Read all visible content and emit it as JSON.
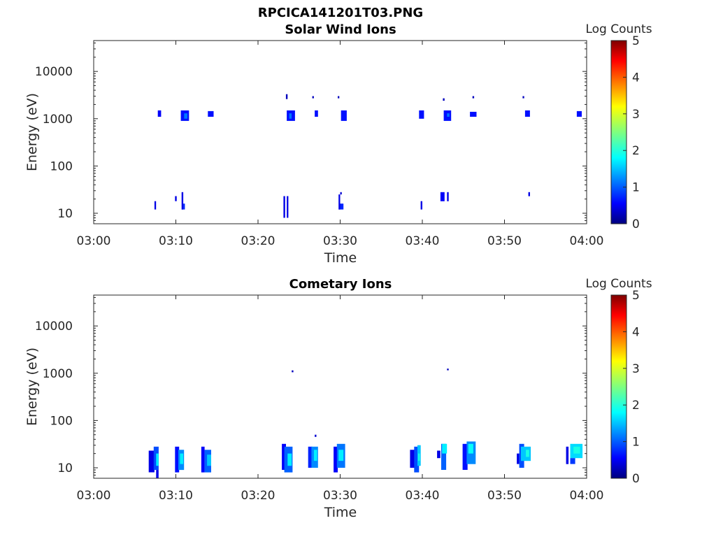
{
  "figure_title": "RPCICA141201T03.PNG",
  "colorbar_colors": [
    "#00007f",
    "#0000ff",
    "#007fff",
    "#00ffff",
    "#7fff7f",
    "#ffff00",
    "#ff7f00",
    "#ff0000",
    "#7f0000"
  ],
  "chart_data": [
    {
      "type": "heatmap",
      "title": "Solar Wind Ions",
      "xlabel": "Time",
      "ylabel": "Energy (eV)",
      "x_ticks": [
        "03:00",
        "03:10",
        "03:20",
        "03:30",
        "03:40",
        "03:50",
        "04:00"
      ],
      "xlim_minutes": [
        0,
        60
      ],
      "y_scale": "log",
      "ylim": [
        6,
        45000
      ],
      "y_ticks": [
        {
          "value": 10,
          "label": "10"
        },
        {
          "value": 100,
          "label": "100"
        },
        {
          "value": 1000,
          "label": "1000"
        },
        {
          "value": 10000,
          "label": "10000"
        }
      ],
      "colorbar": {
        "label": "Log Counts",
        "range": [
          0,
          5
        ],
        "ticks": [
          "0",
          "1",
          "2",
          "3",
          "4",
          "5"
        ]
      },
      "cells": [
        {
          "t": [
            7.8,
            8.2
          ],
          "e": [
            1100,
            1500
          ],
          "v": 0.6
        },
        {
          "t": [
            10.6,
            11.6
          ],
          "e": [
            900,
            1500
          ],
          "v": 0.7
        },
        {
          "t": [
            11.0,
            11.4
          ],
          "e": [
            1000,
            1300
          ],
          "v": 1.2
        },
        {
          "t": [
            13.9,
            14.6
          ],
          "e": [
            1100,
            1450
          ],
          "v": 0.7
        },
        {
          "t": [
            23.4,
            23.6
          ],
          "e": [
            2600,
            3300
          ],
          "v": 0.3
        },
        {
          "t": [
            23.5,
            24.5
          ],
          "e": [
            900,
            1500
          ],
          "v": 0.7
        },
        {
          "t": [
            23.8,
            24.1
          ],
          "e": [
            1000,
            1300
          ],
          "v": 1.2
        },
        {
          "t": [
            26.6,
            26.8
          ],
          "e": [
            2700,
            3000
          ],
          "v": 0.3
        },
        {
          "t": [
            26.9,
            27.3
          ],
          "e": [
            1100,
            1500
          ],
          "v": 0.7
        },
        {
          "t": [
            29.7,
            29.9
          ],
          "e": [
            2700,
            3000
          ],
          "v": 0.3
        },
        {
          "t": [
            30.1,
            30.8
          ],
          "e": [
            900,
            1500
          ],
          "v": 0.7
        },
        {
          "t": [
            39.6,
            40.2
          ],
          "e": [
            1000,
            1500
          ],
          "v": 0.7
        },
        {
          "t": [
            42.5,
            42.7
          ],
          "e": [
            2400,
            2700
          ],
          "v": 0.3
        },
        {
          "t": [
            42.6,
            43.5
          ],
          "e": [
            900,
            1500
          ],
          "v": 0.7
        },
        {
          "t": [
            43.0,
            43.3
          ],
          "e": [
            1100,
            1300
          ],
          "v": 1.2
        },
        {
          "t": [
            45.8,
            46.6
          ],
          "e": [
            1100,
            1400
          ],
          "v": 0.7
        },
        {
          "t": [
            46.1,
            46.3
          ],
          "e": [
            2700,
            3000
          ],
          "v": 0.3
        },
        {
          "t": [
            52.2,
            52.4
          ],
          "e": [
            2700,
            3000
          ],
          "v": 0.3
        },
        {
          "t": [
            52.5,
            53.1
          ],
          "e": [
            1100,
            1500
          ],
          "v": 0.7
        },
        {
          "t": [
            58.8,
            59.4
          ],
          "e": [
            1100,
            1450
          ],
          "v": 0.7
        },
        {
          "t": [
            7.4,
            7.6
          ],
          "e": [
            12,
            18
          ],
          "v": 0.5
        },
        {
          "t": [
            9.9,
            10.1
          ],
          "e": [
            18,
            23
          ],
          "v": 0.5
        },
        {
          "t": [
            10.7,
            10.9
          ],
          "e": [
            12,
            28
          ],
          "v": 0.5
        },
        {
          "t": [
            10.9,
            11.1
          ],
          "e": [
            12,
            16
          ],
          "v": 0.8
        },
        {
          "t": [
            23.1,
            23.3
          ],
          "e": [
            8,
            23
          ],
          "v": 0.5
        },
        {
          "t": [
            23.5,
            23.7
          ],
          "e": [
            8,
            23
          ],
          "v": 0.5
        },
        {
          "t": [
            29.8,
            30.0
          ],
          "e": [
            12,
            25
          ],
          "v": 0.5
        },
        {
          "t": [
            30.0,
            30.4
          ],
          "e": [
            12,
            16
          ],
          "v": 0.8
        },
        {
          "t": [
            30.0,
            30.2
          ],
          "e": [
            25,
            28
          ],
          "v": 0.4
        },
        {
          "t": [
            39.8,
            40.0
          ],
          "e": [
            12,
            18
          ],
          "v": 0.5
        },
        {
          "t": [
            42.2,
            42.7
          ],
          "e": [
            18,
            28
          ],
          "v": 0.6
        },
        {
          "t": [
            43.0,
            43.2
          ],
          "e": [
            18,
            28
          ],
          "v": 0.5
        },
        {
          "t": [
            52.9,
            53.1
          ],
          "e": [
            23,
            28
          ],
          "v": 0.5
        }
      ]
    },
    {
      "type": "heatmap",
      "title": "Cometary Ions",
      "xlabel": "Time",
      "ylabel": "Energy (eV)",
      "x_ticks": [
        "03:00",
        "03:10",
        "03:20",
        "03:30",
        "03:40",
        "03:50",
        "04:00"
      ],
      "xlim_minutes": [
        0,
        60
      ],
      "y_scale": "log",
      "ylim": [
        6,
        45000
      ],
      "y_ticks": [
        {
          "value": 10,
          "label": "10"
        },
        {
          "value": 100,
          "label": "100"
        },
        {
          "value": 1000,
          "label": "1000"
        },
        {
          "value": 10000,
          "label": "10000"
        }
      ],
      "colorbar": {
        "label": "Log Counts",
        "range": [
          0,
          5
        ],
        "ticks": [
          "0",
          "1",
          "2",
          "3",
          "4",
          "5"
        ]
      },
      "cells": [
        {
          "t": [
            6.7,
            7.4
          ],
          "e": [
            8,
            23
          ],
          "v": 0.5
        },
        {
          "t": [
            7.3,
            7.9
          ],
          "e": [
            9,
            28
          ],
          "v": 1.0
        },
        {
          "t": [
            7.6,
            7.9
          ],
          "e": [
            11,
            20
          ],
          "v": 1.8
        },
        {
          "t": [
            7.6,
            7.9
          ],
          "e": [
            6,
            9
          ],
          "v": 0.5
        },
        {
          "t": [
            9.9,
            10.4
          ],
          "e": [
            8,
            28
          ],
          "v": 0.7
        },
        {
          "t": [
            10.3,
            11.0
          ],
          "e": [
            9,
            24
          ],
          "v": 1.3
        },
        {
          "t": [
            10.5,
            10.9
          ],
          "e": [
            12,
            20
          ],
          "v": 1.8
        },
        {
          "t": [
            13.1,
            13.5
          ],
          "e": [
            8,
            28
          ],
          "v": 0.6
        },
        {
          "t": [
            13.5,
            14.3
          ],
          "e": [
            8,
            24
          ],
          "v": 1.1
        },
        {
          "t": [
            13.8,
            14.3
          ],
          "e": [
            11,
            19
          ],
          "v": 1.6
        },
        {
          "t": [
            22.9,
            23.4
          ],
          "e": [
            9,
            32
          ],
          "v": 0.6
        },
        {
          "t": [
            23.2,
            24.2
          ],
          "e": [
            8,
            28
          ],
          "v": 1.1
        },
        {
          "t": [
            23.6,
            24.1
          ],
          "e": [
            11,
            20
          ],
          "v": 1.8
        },
        {
          "t": [
            24.1,
            24.3
          ],
          "e": [
            1050,
            1150
          ],
          "v": 0.3
        },
        {
          "t": [
            26.1,
            26.6
          ],
          "e": [
            10,
            28
          ],
          "v": 0.8
        },
        {
          "t": [
            26.5,
            27.3
          ],
          "e": [
            10,
            28
          ],
          "v": 1.3
        },
        {
          "t": [
            26.8,
            27.2
          ],
          "e": [
            14,
            24
          ],
          "v": 1.8
        },
        {
          "t": [
            26.9,
            27.1
          ],
          "e": [
            45,
            50
          ],
          "v": 0.4
        },
        {
          "t": [
            29.2,
            29.7
          ],
          "e": [
            8,
            28
          ],
          "v": 0.6
        },
        {
          "t": [
            29.6,
            30.6
          ],
          "e": [
            10,
            32
          ],
          "v": 1.2
        },
        {
          "t": [
            29.8,
            30.4
          ],
          "e": [
            14,
            24
          ],
          "v": 1.8
        },
        {
          "t": [
            38.5,
            39.1
          ],
          "e": [
            10,
            24
          ],
          "v": 0.5
        },
        {
          "t": [
            39.0,
            39.6
          ],
          "e": [
            8,
            28
          ],
          "v": 1.0
        },
        {
          "t": [
            39.4,
            39.8
          ],
          "e": [
            11,
            30
          ],
          "v": 1.6
        },
        {
          "t": [
            39.5,
            39.7
          ],
          "e": [
            14,
            20
          ],
          "v": 2.0
        },
        {
          "t": [
            41.8,
            42.2
          ],
          "e": [
            16,
            23
          ],
          "v": 0.5
        },
        {
          "t": [
            42.3,
            42.9
          ],
          "e": [
            9,
            32
          ],
          "v": 1.1
        },
        {
          "t": [
            42.4,
            43.0
          ],
          "e": [
            20,
            32
          ],
          "v": 1.8
        },
        {
          "t": [
            43.0,
            43.2
          ],
          "e": [
            1150,
            1250
          ],
          "v": 0.3
        },
        {
          "t": [
            44.9,
            45.5
          ],
          "e": [
            9,
            32
          ],
          "v": 0.7
        },
        {
          "t": [
            45.4,
            46.5
          ],
          "e": [
            12,
            36
          ],
          "v": 1.3
        },
        {
          "t": [
            45.6,
            46.2
          ],
          "e": [
            20,
            32
          ],
          "v": 1.9
        },
        {
          "t": [
            51.5,
            51.8
          ],
          "e": [
            12,
            20
          ],
          "v": 0.5
        },
        {
          "t": [
            51.8,
            52.4
          ],
          "e": [
            10,
            32
          ],
          "v": 1.0
        },
        {
          "t": [
            52.0,
            53.2
          ],
          "e": [
            14,
            28
          ],
          "v": 1.6
        },
        {
          "t": [
            52.6,
            53.0
          ],
          "e": [
            17,
            24
          ],
          "v": 2.0
        },
        {
          "t": [
            57.5,
            57.8
          ],
          "e": [
            12,
            28
          ],
          "v": 0.5
        },
        {
          "t": [
            58.0,
            59.5
          ],
          "e": [
            16,
            32
          ],
          "v": 1.7
        },
        {
          "t": [
            58.0,
            58.6
          ],
          "e": [
            12,
            16
          ],
          "v": 0.9
        },
        {
          "t": [
            58.4,
            59.2
          ],
          "e": [
            20,
            28
          ],
          "v": 2.0
        }
      ]
    }
  ]
}
